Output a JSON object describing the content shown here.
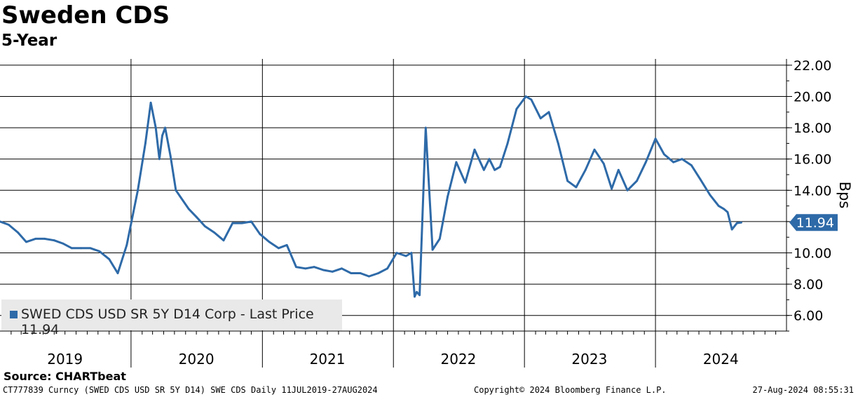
{
  "header": {
    "title": "Sweden CDS",
    "subtitle": "5-Year"
  },
  "legend": {
    "label": "SWED CDS USD SR 5Y D14 Corp - Last Price 11.94"
  },
  "footer": {
    "source": "Source: CHARTbeat",
    "ticker": "CT777839 Curncy (SWED CDS USD SR 5Y D14) SWE CDS  Daily 11JUL2019-27AUG2024",
    "copyright": "Copyright© 2024 Bloomberg Finance L.P.",
    "timestamp": "27-Aug-2024 08:55:31"
  },
  "colors": {
    "line": "#2e6aa8",
    "grid": "#000000",
    "badge": "#2e6aa8"
  },
  "chart_data": {
    "type": "line",
    "ylabel": "Bps",
    "ylim": [
      5.0,
      22.4
    ],
    "yticks": [
      "6.00",
      "8.00",
      "10.00",
      "12.00",
      "14.00",
      "16.00",
      "18.00",
      "20.00",
      "22.00"
    ],
    "xlim": [
      "2019-01-01",
      "2024-12-31"
    ],
    "year_labels": [
      "2019",
      "2020",
      "2021",
      "2022",
      "2023",
      "2024"
    ],
    "last_value": 11.94,
    "last_label": "11.94",
    "grid": true,
    "series": [
      {
        "name": "SWED CDS USD SR 5Y D14 Corp",
        "x": [
          "2019-01-01",
          "2019-01-25",
          "2019-02-20",
          "2019-03-15",
          "2019-04-10",
          "2019-05-05",
          "2019-06-01",
          "2019-06-25",
          "2019-07-20",
          "2019-08-15",
          "2019-09-10",
          "2019-10-05",
          "2019-11-01",
          "2019-11-25",
          "2019-12-20",
          "2020-01-20",
          "2020-02-10",
          "2020-02-25",
          "2020-03-10",
          "2020-03-20",
          "2020-03-28",
          "2020-04-05",
          "2020-04-20",
          "2020-05-05",
          "2020-05-20",
          "2020-06-10",
          "2020-07-01",
          "2020-07-25",
          "2020-08-20",
          "2020-09-15",
          "2020-10-10",
          "2020-11-05",
          "2020-12-01",
          "2020-12-25",
          "2021-01-20",
          "2021-02-15",
          "2021-03-10",
          "2021-04-05",
          "2021-05-01",
          "2021-05-25",
          "2021-06-20",
          "2021-07-15",
          "2021-08-10",
          "2021-09-05",
          "2021-10-01",
          "2021-10-25",
          "2021-11-20",
          "2021-12-15",
          "2022-01-10",
          "2022-02-05",
          "2022-02-20",
          "2022-03-01",
          "2022-03-07",
          "2022-03-15",
          "2022-04-01",
          "2022-04-20",
          "2022-05-10",
          "2022-06-01",
          "2022-06-25",
          "2022-07-20",
          "2022-08-15",
          "2022-09-10",
          "2022-09-25",
          "2022-10-10",
          "2022-10-25",
          "2022-11-15",
          "2022-12-10",
          "2023-01-05",
          "2023-01-20",
          "2023-02-15",
          "2023-03-10",
          "2023-04-05",
          "2023-05-01",
          "2023-05-25",
          "2023-06-20",
          "2023-07-15",
          "2023-08-10",
          "2023-09-01",
          "2023-09-20",
          "2023-10-15",
          "2023-11-10",
          "2023-12-05",
          "2024-01-01",
          "2024-01-25",
          "2024-02-20",
          "2024-03-15",
          "2024-04-10",
          "2024-05-05",
          "2024-06-01",
          "2024-06-25",
          "2024-07-10",
          "2024-07-20",
          "2024-08-01",
          "2024-08-15",
          "2024-08-27"
        ],
        "values": [
          12.0,
          11.8,
          11.3,
          10.7,
          10.9,
          10.9,
          10.8,
          10.6,
          10.3,
          10.3,
          10.3,
          10.1,
          9.6,
          8.7,
          10.5,
          14.0,
          17.0,
          19.6,
          18.0,
          16.0,
          17.5,
          18.0,
          16.2,
          14.0,
          13.5,
          12.8,
          12.3,
          11.7,
          11.3,
          10.8,
          11.9,
          11.9,
          12.0,
          11.2,
          10.7,
          10.3,
          10.5,
          9.1,
          9.0,
          9.1,
          8.9,
          8.8,
          9.0,
          8.7,
          8.7,
          8.5,
          8.7,
          9.0,
          10.0,
          9.8,
          10.0,
          7.2,
          7.5,
          7.3,
          18.0,
          10.2,
          10.9,
          13.6,
          15.8,
          14.5,
          16.6,
          15.3,
          16.0,
          15.3,
          15.5,
          17.0,
          19.2,
          20.0,
          19.8,
          18.6,
          19.0,
          17.0,
          14.6,
          14.2,
          15.3,
          16.6,
          15.7,
          14.1,
          15.3,
          14.0,
          14.6,
          15.8,
          17.3,
          16.3,
          15.8,
          16.0,
          15.6,
          14.7,
          13.7,
          13.0,
          12.8,
          12.6,
          11.5,
          11.9,
          11.94
        ]
      }
    ]
  }
}
